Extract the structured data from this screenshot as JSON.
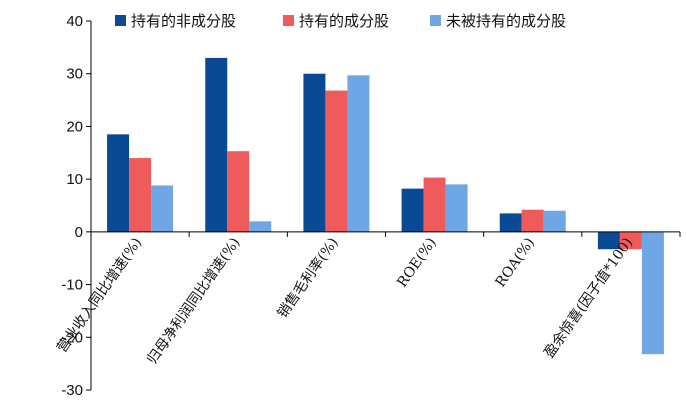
{
  "chart_data": {
    "type": "bar",
    "title": "",
    "xlabel": "",
    "ylabel": "",
    "ylim": [
      -30,
      40
    ],
    "yticks": [
      -30,
      -20,
      -10,
      0,
      10,
      20,
      30,
      40
    ],
    "ytick_labels": [
      "-30",
      "-20",
      "-10",
      "0",
      "10",
      "20",
      "30",
      "40"
    ],
    "grid": false,
    "legend_position": "top",
    "categories": [
      "营业收入同比增速(%)",
      "归母净利润同比增速(%)",
      "销售毛利率(%)",
      "ROE(%)",
      "ROA(%)",
      "盈余惊喜(因子值*100)"
    ],
    "series": [
      {
        "name": "持有的非成分股",
        "color": "#0a4a94",
        "values": [
          18.5,
          33.0,
          30.0,
          8.2,
          3.5,
          -3.3
        ]
      },
      {
        "name": "持有的成分股",
        "color": "#ef5b5b",
        "values": [
          14.0,
          15.3,
          26.8,
          10.3,
          4.2,
          -3.3
        ]
      },
      {
        "name": "未被持有的成分股",
        "color": "#6ea6e6",
        "values": [
          8.8,
          2.0,
          29.7,
          9.0,
          4.0,
          -23.2
        ]
      }
    ]
  }
}
